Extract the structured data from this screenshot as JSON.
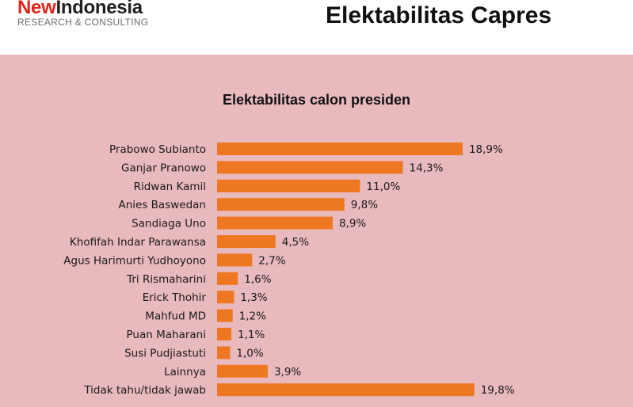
{
  "header": {
    "logo_new": "New",
    "logo_indonesia": "Indonesia",
    "logo_sub": "RESEARCH & CONSULTING",
    "title": "Elektabilitas Capres"
  },
  "colors": {
    "bar": "#ee7722",
    "panel": "#e8b9bd",
    "logo_red": "#e2231a"
  },
  "chart_data": {
    "type": "bar",
    "orientation": "horizontal",
    "title": "Elektabilitas calon presiden",
    "categories": [
      "Prabowo Subianto",
      "Ganjar Pranowo",
      "Ridwan Kamil",
      "Anies Baswedan",
      "Sandiaga Uno",
      "Khofifah Indar Parawansa",
      "Agus Harimurti Yudhoyono",
      "Tri Rismaharini",
      "Erick Thohir",
      "Mahfud MD",
      "Puan Maharani",
      "Susi Pudjiastuti",
      "Lainnya",
      "Tidak tahu/tidak jawab"
    ],
    "values": [
      18.9,
      14.3,
      11.0,
      9.8,
      8.9,
      4.5,
      2.7,
      1.6,
      1.3,
      1.2,
      1.1,
      1.0,
      3.9,
      19.8
    ],
    "labels": [
      "18,9%",
      "14,3%",
      "11,0%",
      "9,8%",
      "8,9%",
      "4,5%",
      "2,7%",
      "1,6%",
      "1,3%",
      "1,2%",
      "1,1%",
      "1,0%",
      "3,9%",
      "19,8%"
    ],
    "xlabel": "",
    "ylabel": "",
    "grid": false,
    "legend": "none"
  }
}
